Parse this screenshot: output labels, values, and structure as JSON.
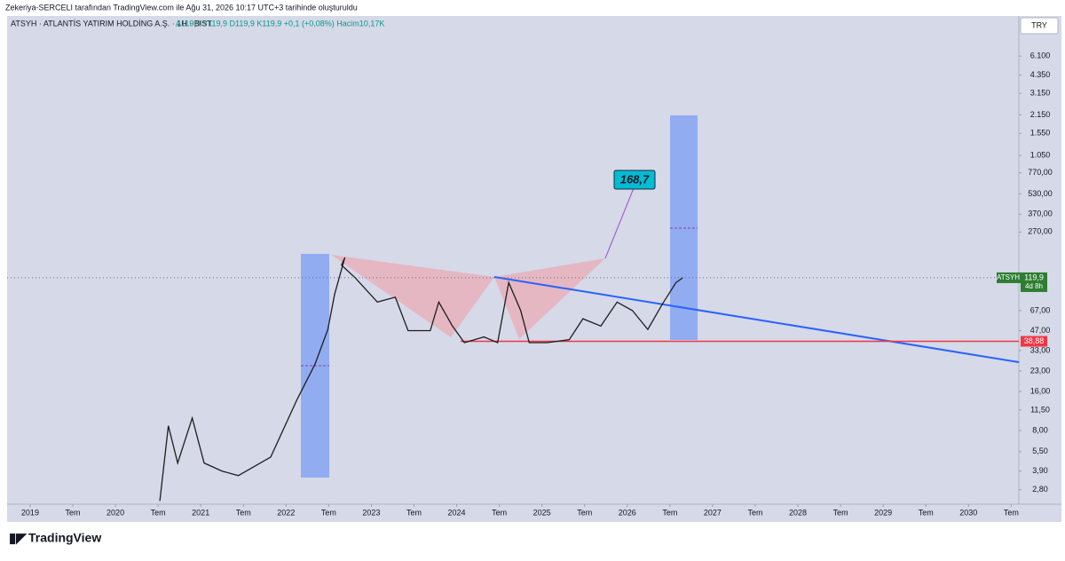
{
  "header": "Zekeriya-SERCELI tarafından TradingView.com ile Ağu 31, 2026 10:17 UTC+3 tarihinde oluşturuldu",
  "legend": {
    "symbol": "ATSYH · ATLANTİS YATIRIM HOLDİNG A.Ş. · 1H · BIST",
    "quote": "A119,9 Y119,9 D119,9 K119,9 +0,1 (+0,08%) Hacim10,17K"
  },
  "currency": "TRY",
  "brand": "TradingView",
  "chart_data": {
    "type": "line",
    "log_scale": true,
    "color": "#1e1e1e",
    "xlim": [
      2018.73,
      2030.59
    ],
    "ylim": [
      2.17,
      12400
    ],
    "xticks": [
      2019,
      {
        "value": 2019.5,
        "label": "Tem"
      },
      2020,
      {
        "value": 2020.5,
        "label": "Tem"
      },
      2021,
      {
        "value": 2021.5,
        "label": "Tem"
      },
      2022,
      {
        "value": 2022.5,
        "label": "Tem"
      },
      2023,
      {
        "value": 2023.5,
        "label": "Tem"
      },
      2024,
      {
        "value": 2024.5,
        "label": "Tem"
      },
      2025,
      {
        "value": 2025.5,
        "label": "Tem"
      },
      2026,
      {
        "value": 2026.5,
        "label": "Tem"
      },
      2027,
      {
        "value": 2027.5,
        "label": "Tem"
      },
      2028,
      {
        "value": 2028.5,
        "label": "Tem"
      },
      2029,
      {
        "value": 2029.5,
        "label": "Tem"
      },
      2030,
      {
        "value": 2030.5,
        "label": "Tem"
      }
    ],
    "yticks": [
      {
        "value": 6100,
        "label": "6.100"
      },
      {
        "value": 4350,
        "label": "4.350"
      },
      {
        "value": 3150,
        "label": "3.150"
      },
      {
        "value": 2150,
        "label": "2.150"
      },
      {
        "value": 1550,
        "label": "1.550"
      },
      {
        "value": 1050,
        "label": "1.050"
      },
      {
        "value": 770,
        "label": "770,00"
      },
      {
        "value": 530,
        "label": "530,00"
      },
      {
        "value": 370,
        "label": "370,00"
      },
      {
        "value": 270,
        "label": "270,00"
      },
      {
        "value": 67,
        "label": "67,00"
      },
      {
        "value": 47,
        "label": "47,00"
      },
      {
        "value": 33,
        "label": "33,00"
      },
      {
        "value": 23,
        "label": "23,00"
      },
      {
        "value": 16,
        "label": "16,00"
      },
      {
        "value": 11.5,
        "label": "11,50"
      },
      {
        "value": 8,
        "label": "8,00"
      },
      {
        "value": 5.5,
        "label": "5,50"
      },
      {
        "value": 3.9,
        "label": "3,90"
      },
      {
        "value": 2.8,
        "label": "2,80"
      }
    ],
    "series": [
      {
        "name": "ATSYH",
        "color": "#1e1e1e",
        "x": [
          2020.52,
          2020.62,
          2020.73,
          2020.9,
          2021.04,
          2021.25,
          2021.44,
          2021.82,
          2022.13,
          2022.34,
          2022.34,
          2022.49,
          2022.57,
          2022.69,
          2022.65,
          2022.81,
          2023.07,
          2023.28,
          2023.43,
          2023.69,
          2023.79,
          2023.95,
          2024.09,
          2024.32,
          2024.32,
          2024.48,
          2024.61,
          2024.75,
          2024.85,
          2025.06,
          2025.32,
          2025.48,
          2025.69,
          2025.88,
          2026.06,
          2026.24,
          2026.41,
          2026.57,
          2026.65
        ],
        "values": [
          2.3,
          8.7,
          4.5,
          10,
          4.5,
          3.9,
          3.6,
          5,
          13.9,
          26,
          26,
          48,
          90,
          172,
          150,
          120,
          78,
          85,
          47,
          47,
          78,
          51,
          38,
          42,
          42,
          38,
          110,
          67,
          38,
          38,
          40,
          58,
          51,
          78,
          67,
          48,
          75,
          110,
          120
        ]
      }
    ],
    "support": {
      "value": 38.88,
      "label": "38,88"
    },
    "last_price": {
      "value": 119.9,
      "label": "119,9"
    },
    "countdown": "4d 8h",
    "target_label": "168,7"
  }
}
